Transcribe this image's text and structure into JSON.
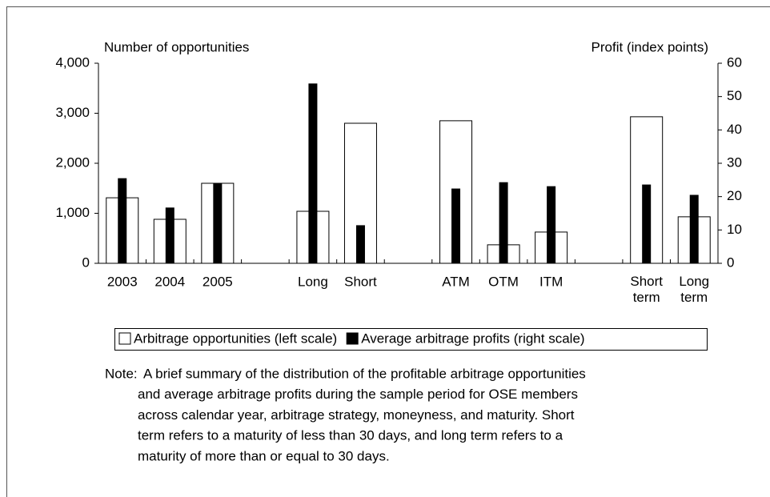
{
  "chart_data": {
    "type": "bar",
    "y_axis_title": "Number of opportunities",
    "y2_axis_title": "Profit (index points)",
    "categories": [
      "2003",
      "2004",
      "2005",
      null,
      "Long",
      "Short",
      null,
      "ATM",
      "OTM",
      "ITM",
      null,
      "Short term",
      "Long term"
    ],
    "series": [
      {
        "name": "Arbitrage opportunities (left scale)",
        "color": "#ffffff",
        "values": [
          1310,
          880,
          1600,
          null,
          1040,
          2800,
          null,
          2850,
          370,
          625,
          null,
          2930,
          930
        ]
      },
      {
        "name": "Average arbitrage profits (right scale)",
        "color": "#000000",
        "axis": "y2",
        "values": [
          25.4,
          16.6,
          24,
          null,
          53.8,
          11.3,
          null,
          22.3,
          24.2,
          23,
          null,
          23.5,
          20.4
        ]
      }
    ],
    "ylim": [
      0,
      4000
    ],
    "yticks": [
      0,
      {
        "value": 1000,
        "label": "1,000"
      },
      {
        "value": 2000,
        "label": "2,000"
      },
      {
        "value": 3000,
        "label": "3,000"
      },
      {
        "value": 4000,
        "label": "4,000"
      }
    ],
    "y2lim": [
      0,
      60
    ],
    "y2ticks": [
      0,
      10,
      20,
      30,
      40,
      50,
      60
    ],
    "grid": false,
    "legend": "bottom",
    "note_label": "Note:",
    "note_lines": [
      "A brief summary of the distribution of the profitable arbitrage opportunities",
      "and average arbitrage profits during the sample period for OSE members",
      "across calendar year, arbitrage strategy, moneyness, and maturity. Short",
      "term refers to a maturity of less than 30 days, and long term refers to a",
      "maturity of more than or equal to 30 days."
    ]
  }
}
